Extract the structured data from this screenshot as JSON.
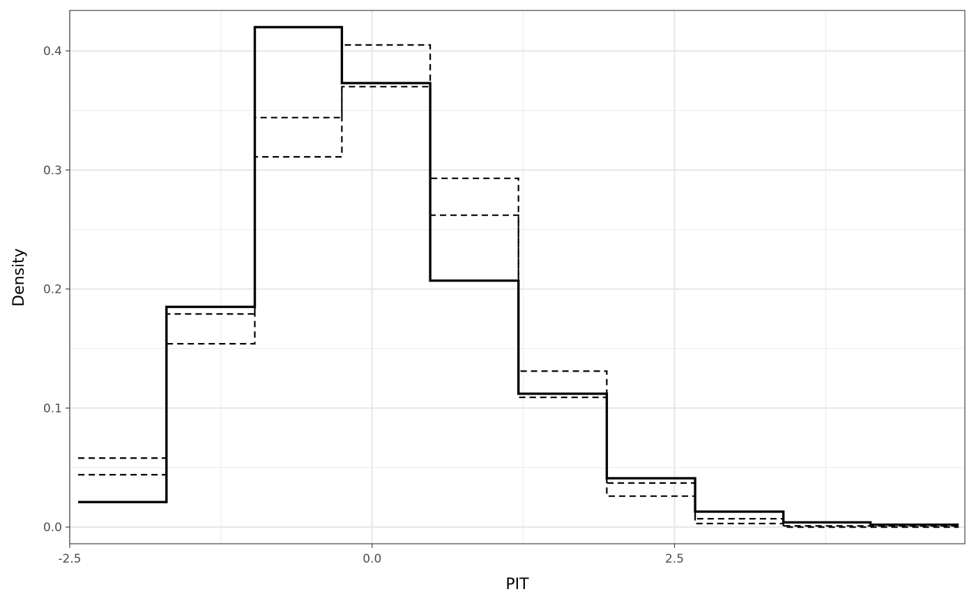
{
  "chart_data": {
    "type": "line",
    "title": "",
    "xlabel": "PIT",
    "ylabel": "Density",
    "xlim": [
      -2.5,
      4.9
    ],
    "ylim": [
      -0.014,
      0.434
    ],
    "x_ticks": [
      -2.5,
      0.0,
      2.5
    ],
    "x_tick_labels": [
      "-2.5",
      "0.0",
      "2.5"
    ],
    "y_ticks": [
      0.0,
      0.1,
      0.2,
      0.3,
      0.4
    ],
    "y_tick_labels": [
      "0.0",
      "0.1",
      "0.2",
      "0.3",
      "0.4"
    ],
    "grid": true,
    "legend": "none",
    "x_bin_edges": [
      -2.43,
      -1.7,
      -0.97,
      -0.25,
      0.48,
      1.21,
      1.94,
      2.67,
      3.4,
      4.12,
      4.85
    ],
    "series": [
      {
        "style": "solid",
        "values": [
          0.021,
          0.185,
          0.42,
          0.373,
          0.207,
          0.112,
          0.041,
          0.013,
          0.004,
          0.002
        ]
      },
      {
        "style": "dashed",
        "values": [
          0.058,
          0.179,
          0.344,
          0.405,
          0.293,
          0.131,
          0.037,
          0.007,
          0.001,
          0.001
        ]
      },
      {
        "style": "dashed",
        "values": [
          0.044,
          0.154,
          0.311,
          0.37,
          0.262,
          0.109,
          0.026,
          0.003,
          0.0,
          0.0
        ]
      }
    ]
  }
}
